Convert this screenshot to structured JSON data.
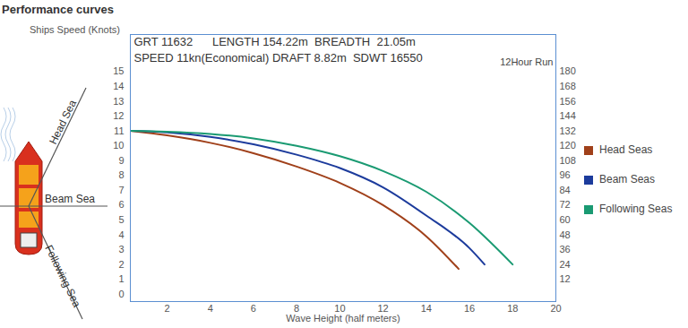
{
  "chart_data": {
    "type": "line",
    "title": "Performance curves",
    "y_label": "Ships Speed (Knots)",
    "x_label": "Wave Height (half meters)",
    "annotations": [
      "GRT 11632      LENGTH 154.22m  BREADTH  21.05m",
      "SPEED 11kn(Economical) DRAFT 8.82m  SDWT 16550",
      "12Hour Run"
    ],
    "sea_labels": [
      "Head Sea",
      "Beam Sea",
      "Following Sea"
    ],
    "series": [
      {
        "name": "Head Seas",
        "color": "#a0401a",
        "x": [
          0.3,
          2,
          4,
          6,
          8,
          10,
          12,
          14,
          15.5
        ],
        "values": [
          11,
          10.7,
          10.2,
          9.5,
          8.6,
          7.5,
          6.0,
          3.9,
          1.7
        ]
      },
      {
        "name": "Beam Seas",
        "color": "#1c3b9c",
        "x": [
          0.3,
          2,
          4,
          6,
          8,
          10,
          12,
          14,
          16,
          16.7
        ],
        "values": [
          11,
          10.9,
          10.6,
          10.1,
          9.4,
          8.5,
          7.2,
          5.3,
          3.1,
          2.0
        ]
      },
      {
        "name": "Following Seas",
        "color": "#1a9a72",
        "x": [
          0.3,
          2,
          4,
          6,
          8,
          10,
          12,
          14,
          16,
          18
        ],
        "values": [
          11,
          10.95,
          10.8,
          10.5,
          10.0,
          9.3,
          8.3,
          6.9,
          4.8,
          2.0
        ]
      }
    ],
    "xlim": [
      0.3,
      20
    ],
    "xticks": [
      2,
      4,
      6,
      8,
      10,
      12,
      14,
      16,
      18,
      20
    ],
    "ylim": [
      -0.5,
      17.5
    ],
    "yticks": [
      0,
      1,
      2,
      3,
      4,
      5,
      6,
      7,
      8,
      9,
      10,
      11,
      12,
      13,
      14,
      15
    ],
    "y2lim": [
      -6,
      210
    ],
    "y2ticks": [
      12,
      24,
      36,
      48,
      60,
      72,
      84,
      96,
      108,
      120,
      132,
      144,
      156,
      168,
      180
    ],
    "grid": false,
    "legend": "right"
  }
}
